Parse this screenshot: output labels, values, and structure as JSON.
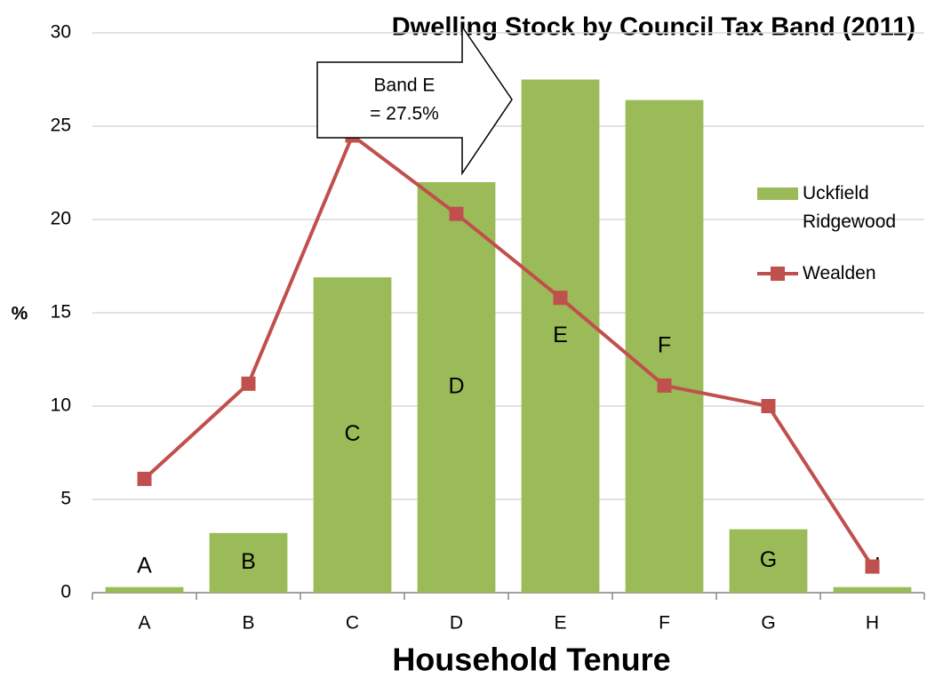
{
  "chart_data": {
    "type": "bar",
    "title": "Dwelling  Stock by Council Tax Band (2011)",
    "x_label": "Household Tenure",
    "y_label": "%",
    "annotation": [
      "Band E",
      "= 27.5%"
    ],
    "categories": [
      "A",
      "B",
      "C",
      "D",
      "E",
      "F",
      "G",
      "H"
    ],
    "series": [
      {
        "name": "Uckfield Ridgewood",
        "type": "bar",
        "color": "#9bbb59",
        "values": [
          0.3,
          3.2,
          16.9,
          22.0,
          27.5,
          26.4,
          3.4,
          0.3
        ]
      },
      {
        "name": "Wealden",
        "type": "line",
        "color": "#c0504d",
        "values": [
          6.1,
          11.2,
          24.5,
          20.3,
          15.8,
          11.1,
          10.0,
          1.4
        ]
      }
    ],
    "ylim": [
      0,
      30
    ],
    "yticks": [
      0,
      5,
      10,
      15,
      20,
      25,
      30
    ],
    "grid": true,
    "legend": "right"
  }
}
